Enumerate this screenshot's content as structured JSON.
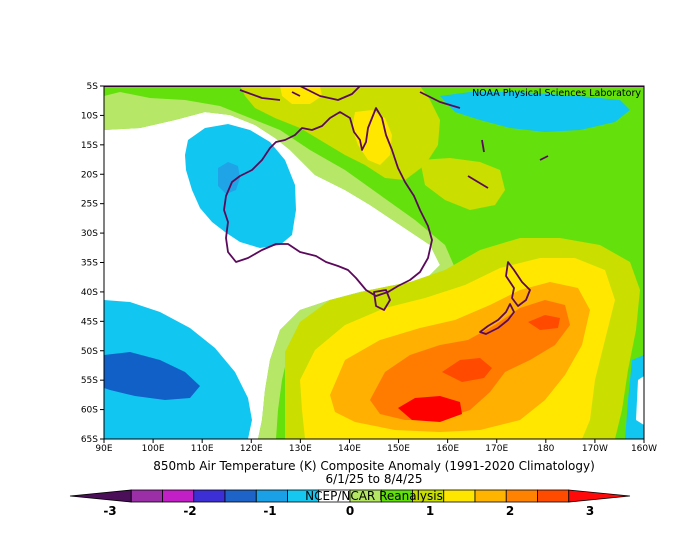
{
  "credit": "NOAA Physical Sciences Laboratory",
  "title": "850mb Air Temperature (K) Composite Anomaly (1991-2020 Climatology)",
  "date_range": "6/1/25  to 8/4/25",
  "source": "NCEP/NCAR Reanalysis",
  "map": {
    "lon_range": [
      90,
      200
    ],
    "lat_range": [
      -65,
      -5
    ],
    "lon_ticks": [
      "90E",
      "100E",
      "110E",
      "120E",
      "130E",
      "140E",
      "150E",
      "160E",
      "170E",
      "180",
      "170W",
      "160W"
    ],
    "lat_ticks": [
      "5S",
      "10S",
      "15S",
      "20S",
      "25S",
      "30S",
      "35S",
      "40S",
      "45S",
      "50S",
      "55S",
      "60S",
      "65S"
    ]
  },
  "colorbar": {
    "labels": [
      "-3",
      "-2",
      "-1",
      "0",
      "1",
      "2",
      "3"
    ],
    "colors": [
      "#4b0f5a",
      "#9b2fa8",
      "#c21fc6",
      "#3c2fd6",
      "#1e64c8",
      "#1aa0e6",
      "#16c8f0",
      "#ffffff",
      "#b4e664",
      "#62e00a",
      "#c8de00",
      "#ffe600",
      "#ffb400",
      "#ff8200",
      "#ff4b00",
      "#ff0a0a"
    ]
  },
  "legend_colors": {
    "deep_blue": "#1160c8",
    "blue": "#20a4e8",
    "light_blue": "#12c6f2",
    "light_green": "#b6e767",
    "green": "#64e00d",
    "yellow_green": "#cade00",
    "yellow": "#ffe700",
    "orange": "#ffb000",
    "dark_orange": "#ff7c00",
    "red_orange": "#ff4a00",
    "red": "#ff0000",
    "coast": "#5b0a5b"
  }
}
